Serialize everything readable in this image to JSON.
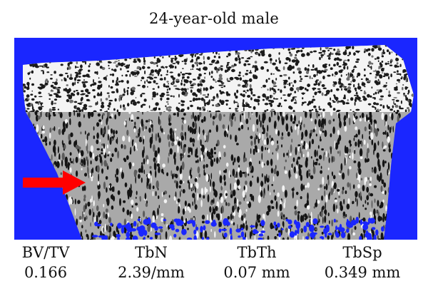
{
  "figure": {
    "title": "24-year-old male",
    "colors": {
      "background": "#1a26ff",
      "bone": "#a9a9a9",
      "trabecular_top": "#f4f4f4",
      "arrow": "#ff0000"
    }
  },
  "metrics": [
    {
      "label": "BV/TV",
      "value": "0.166"
    },
    {
      "label": "TbN",
      "value": "2.39/mm"
    },
    {
      "label": "TbTh",
      "value": "0.07 mm"
    },
    {
      "label": "TbSp",
      "value": "0.349 mm"
    }
  ],
  "icons": {
    "arrow": "red-right-arrow-icon"
  }
}
